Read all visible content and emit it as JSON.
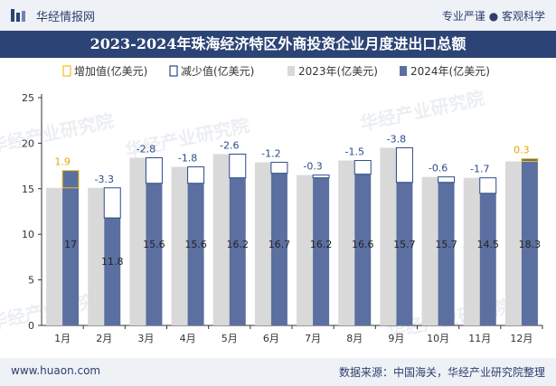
{
  "header": {
    "site_name": "华经情报网",
    "tagline": "专业严谨 ● 客观科学"
  },
  "title": "2023-2024年珠海经济特区外商投资企业月度进出口总额",
  "footer": {
    "url": "www.huaon.com",
    "source": "数据来源：中国海关，华经产业研究院整理"
  },
  "watermark": "华经产业研究院",
  "colors": {
    "bar_2023": "#d9d9d9",
    "bar_2024": "#5b6fa0",
    "increase": "#f3c21b",
    "decrease": "#2b4a8a",
    "header_bg": "#2c4475"
  },
  "chart_data": {
    "type": "bar",
    "categories": [
      "1月",
      "2月",
      "3月",
      "4月",
      "5月",
      "6月",
      "7月",
      "8月",
      "9月",
      "10月",
      "11月",
      "12月"
    ],
    "series": [
      {
        "name": "2023年(亿美元)",
        "values": [
          15.1,
          15.1,
          18.4,
          17.4,
          18.8,
          17.9,
          16.5,
          18.1,
          19.5,
          16.3,
          16.2,
          18.0
        ]
      },
      {
        "name": "2024年(亿美元)",
        "values": [
          17,
          11.8,
          15.6,
          15.6,
          16.2,
          16.7,
          16.2,
          16.6,
          15.7,
          15.7,
          14.5,
          18.3
        ]
      }
    ],
    "differences": [
      "1.9",
      "-3.3",
      "-2.8",
      "-1.8",
      "-2.6",
      "-1.2",
      "-0.3",
      "-1.5",
      "-3.8",
      "-0.6",
      "-1.7",
      "0.3"
    ],
    "value_labels_2024": [
      "17",
      "11.8",
      "15.6",
      "15.6",
      "16.2",
      "16.7",
      "16.2",
      "16.6",
      "15.7",
      "15.7",
      "14.5",
      "18.3"
    ],
    "legend": [
      "增加值(亿美元)",
      "减少值(亿美元)",
      "2023年(亿美元)",
      "2024年(亿美元)"
    ],
    "legend_position": "top",
    "yticks": [
      "0",
      "5",
      "10",
      "15",
      "20",
      "25"
    ],
    "ylim": [
      0,
      25
    ],
    "grid": false
  }
}
